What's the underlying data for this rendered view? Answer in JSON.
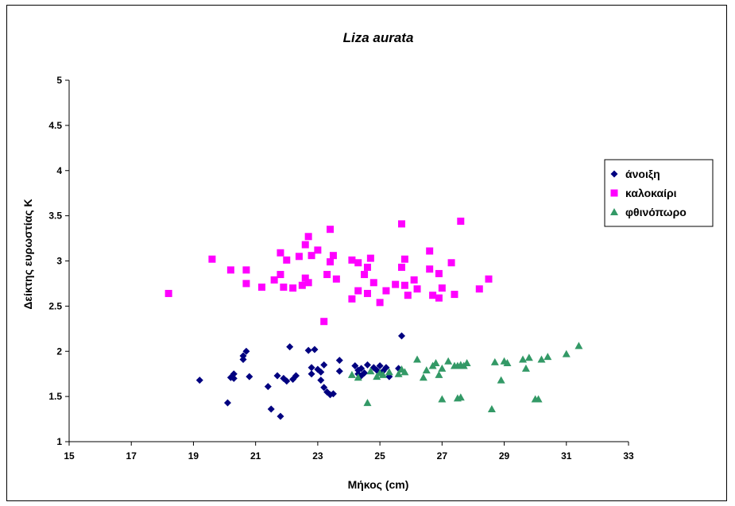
{
  "chart_data": {
    "type": "scatter",
    "title": "Liza aurata",
    "xlabel": "Μήκος (cm)",
    "ylabel": "Δείκτης ευρωστίας Κ",
    "xlim": [
      15,
      33
    ],
    "ylim": [
      1,
      5
    ],
    "x_ticks": [
      "15",
      "17",
      "19",
      "21",
      "23",
      "25",
      "27",
      "29",
      "31",
      "33"
    ],
    "y_ticks": [
      "1",
      "1.5",
      "2",
      "2.5",
      "3",
      "3.5",
      "4",
      "4.5",
      "5"
    ],
    "grid": false,
    "legend_position": "right",
    "series": [
      {
        "name": "άνοιξη",
        "marker": "diamond",
        "color": "#000080",
        "points": [
          [
            19.2,
            1.68
          ],
          [
            20.1,
            1.43
          ],
          [
            20.2,
            1.71
          ],
          [
            20.3,
            1.75
          ],
          [
            20.3,
            1.7
          ],
          [
            20.6,
            1.95
          ],
          [
            20.6,
            1.91
          ],
          [
            20.7,
            2.0
          ],
          [
            20.8,
            1.72
          ],
          [
            21.4,
            1.61
          ],
          [
            21.5,
            1.36
          ],
          [
            21.7,
            1.73
          ],
          [
            21.9,
            1.7
          ],
          [
            21.8,
            1.28
          ],
          [
            22.0,
            1.67
          ],
          [
            22.1,
            2.05
          ],
          [
            22.2,
            1.69
          ],
          [
            22.3,
            1.73
          ],
          [
            22.7,
            2.01
          ],
          [
            22.8,
            1.82
          ],
          [
            22.8,
            1.75
          ],
          [
            22.9,
            2.02
          ],
          [
            23.0,
            1.8
          ],
          [
            23.1,
            1.77
          ],
          [
            23.1,
            1.68
          ],
          [
            23.2,
            1.6
          ],
          [
            23.2,
            1.85
          ],
          [
            23.3,
            1.55
          ],
          [
            23.4,
            1.52
          ],
          [
            23.5,
            1.53
          ],
          [
            23.7,
            1.9
          ],
          [
            23.7,
            1.78
          ],
          [
            24.2,
            1.84
          ],
          [
            24.3,
            1.79
          ],
          [
            24.3,
            1.75
          ],
          [
            24.4,
            1.73
          ],
          [
            24.4,
            1.81
          ],
          [
            24.5,
            1.76
          ],
          [
            24.6,
            1.85
          ],
          [
            24.8,
            1.82
          ],
          [
            24.9,
            1.79
          ],
          [
            25.0,
            1.84
          ],
          [
            25.1,
            1.78
          ],
          [
            25.2,
            1.82
          ],
          [
            25.3,
            1.72
          ],
          [
            25.6,
            1.81
          ],
          [
            25.7,
            2.17
          ]
        ]
      },
      {
        "name": "καλοκαίρι",
        "marker": "square",
        "color": "#FF00FF",
        "points": [
          [
            18.2,
            2.64
          ],
          [
            19.6,
            3.02
          ],
          [
            20.2,
            2.9
          ],
          [
            20.7,
            2.9
          ],
          [
            20.7,
            2.75
          ],
          [
            21.2,
            2.71
          ],
          [
            21.6,
            2.79
          ],
          [
            21.8,
            2.85
          ],
          [
            21.9,
            2.71
          ],
          [
            21.8,
            3.09
          ],
          [
            22.0,
            3.01
          ],
          [
            22.2,
            2.7
          ],
          [
            22.4,
            3.05
          ],
          [
            22.5,
            2.73
          ],
          [
            22.6,
            2.81
          ],
          [
            22.6,
            3.18
          ],
          [
            22.7,
            3.27
          ],
          [
            22.7,
            2.76
          ],
          [
            22.8,
            3.06
          ],
          [
            23.0,
            3.12
          ],
          [
            23.2,
            2.33
          ],
          [
            23.3,
            2.85
          ],
          [
            23.4,
            3.35
          ],
          [
            23.4,
            2.99
          ],
          [
            23.5,
            3.06
          ],
          [
            23.6,
            2.8
          ],
          [
            24.1,
            3.01
          ],
          [
            24.1,
            2.58
          ],
          [
            24.3,
            2.67
          ],
          [
            24.3,
            2.98
          ],
          [
            24.5,
            2.85
          ],
          [
            24.6,
            2.93
          ],
          [
            24.6,
            2.64
          ],
          [
            24.7,
            3.03
          ],
          [
            24.8,
            2.76
          ],
          [
            25.0,
            2.54
          ],
          [
            25.2,
            2.67
          ],
          [
            25.5,
            2.74
          ],
          [
            25.7,
            3.41
          ],
          [
            25.7,
            2.93
          ],
          [
            25.8,
            3.02
          ],
          [
            25.8,
            2.73
          ],
          [
            25.9,
            2.62
          ],
          [
            26.1,
            2.79
          ],
          [
            26.2,
            2.69
          ],
          [
            26.6,
            3.11
          ],
          [
            26.6,
            2.91
          ],
          [
            26.7,
            2.62
          ],
          [
            26.9,
            2.86
          ],
          [
            26.9,
            2.59
          ],
          [
            27.0,
            2.7
          ],
          [
            27.3,
            2.98
          ],
          [
            27.4,
            2.63
          ],
          [
            27.6,
            3.44
          ],
          [
            28.2,
            2.69
          ],
          [
            28.5,
            2.8
          ]
        ]
      },
      {
        "name": "φθινόπωρο",
        "marker": "triangle",
        "color": "#339966",
        "points": [
          [
            24.1,
            1.74
          ],
          [
            24.3,
            1.71
          ],
          [
            24.6,
            1.43
          ],
          [
            24.7,
            1.78
          ],
          [
            24.9,
            1.72
          ],
          [
            25.0,
            1.76
          ],
          [
            25.1,
            1.74
          ],
          [
            25.3,
            1.77
          ],
          [
            25.6,
            1.75
          ],
          [
            25.7,
            1.8
          ],
          [
            25.8,
            1.77
          ],
          [
            26.2,
            1.91
          ],
          [
            26.4,
            1.71
          ],
          [
            26.5,
            1.79
          ],
          [
            26.7,
            1.84
          ],
          [
            26.8,
            1.87
          ],
          [
            26.9,
            1.74
          ],
          [
            27.0,
            1.47
          ],
          [
            27.0,
            1.81
          ],
          [
            27.2,
            1.89
          ],
          [
            27.4,
            1.84
          ],
          [
            27.5,
            1.84
          ],
          [
            27.5,
            1.48
          ],
          [
            27.6,
            1.85
          ],
          [
            27.6,
            1.49
          ],
          [
            27.7,
            1.84
          ],
          [
            27.8,
            1.87
          ],
          [
            28.6,
            1.36
          ],
          [
            28.7,
            1.88
          ],
          [
            28.9,
            1.68
          ],
          [
            29.0,
            1.89
          ],
          [
            29.1,
            1.87
          ],
          [
            29.6,
            1.91
          ],
          [
            29.7,
            1.81
          ],
          [
            29.8,
            1.93
          ],
          [
            30.0,
            1.47
          ],
          [
            30.1,
            1.47
          ],
          [
            30.2,
            1.91
          ],
          [
            30.4,
            1.94
          ],
          [
            31.0,
            1.97
          ],
          [
            31.4,
            2.06
          ]
        ]
      }
    ]
  }
}
